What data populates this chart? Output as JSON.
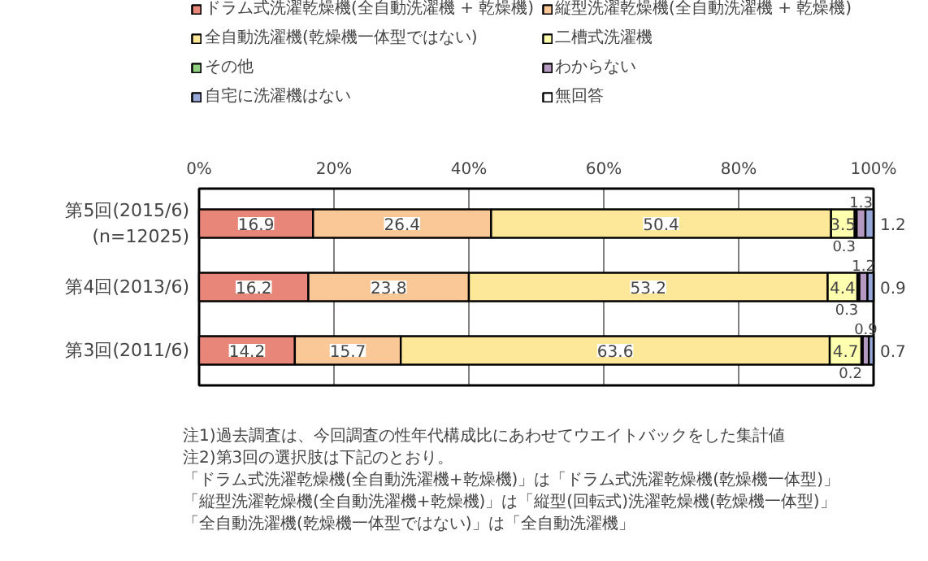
{
  "chart_data": {
    "type": "bar",
    "orientation": "horizontal",
    "stacked": true,
    "categories": [
      "第5回(2015/6)\n(n=12025)",
      "第4回(2013/6)",
      "第3回(2011/6)"
    ],
    "series": [
      {
        "name": "ドラム式洗濯乾燥機(全自動洗濯機 + 乾燥機)",
        "color": "#e8867a",
        "values": [
          16.9,
          16.2,
          14.2
        ]
      },
      {
        "name": "縦型洗濯乾燥機(全自動洗濯機 + 乾燥機)",
        "color": "#f9c896",
        "values": [
          26.4,
          23.8,
          15.7
        ]
      },
      {
        "name": "全自動洗濯機(乾燥機一体型ではない)",
        "color": "#fde89a",
        "values": [
          50.4,
          53.2,
          63.6
        ]
      },
      {
        "name": "二槽式洗濯機",
        "color": "#ffffb0",
        "values": [
          3.5,
          4.4,
          4.7
        ]
      },
      {
        "name": "その他",
        "color": "#90d080",
        "values": [
          0.3,
          0.3,
          0.2
        ]
      },
      {
        "name": "わからない",
        "color": "#b49ac0",
        "values": [
          1.3,
          1.2,
          0.9
        ]
      },
      {
        "name": "自宅に洗濯機はない",
        "color": "#98a8d8",
        "values": [
          1.2,
          0.9,
          0.7
        ]
      },
      {
        "name": "無回答",
        "color": "#ffffff",
        "values": [
          null,
          null,
          null
        ]
      }
    ],
    "xlim": [
      0,
      100
    ],
    "xticks": [
      {
        "value": 0,
        "label": "0%"
      },
      {
        "value": 20,
        "label": "20%"
      },
      {
        "value": 40,
        "label": "40%"
      },
      {
        "value": 60,
        "label": "60%"
      },
      {
        "value": 80,
        "label": "80%"
      },
      {
        "value": 100,
        "label": "100%"
      }
    ],
    "grid": "x",
    "legend": "top",
    "data_labels": true,
    "annotations": [
      "注1)過去調査は、今回調査の性年代構成比にあわせてウエイトバックをした集計値",
      "注2)第3回の選択肢は下記のとおり。",
      "「ドラム式洗濯乾燥機(全自動洗濯機+乾燥機)」は「ドラム式洗濯乾燥機(乾燥機一体型)」",
      "「縦型洗濯乾燥機(全自動洗濯機+乾燥機)」は「縦型(回転式)洗濯乾燥機(乾燥機一体型)」",
      "「全自動洗濯機(乾燥機一体型ではない)」は「全自動洗濯機」"
    ]
  }
}
